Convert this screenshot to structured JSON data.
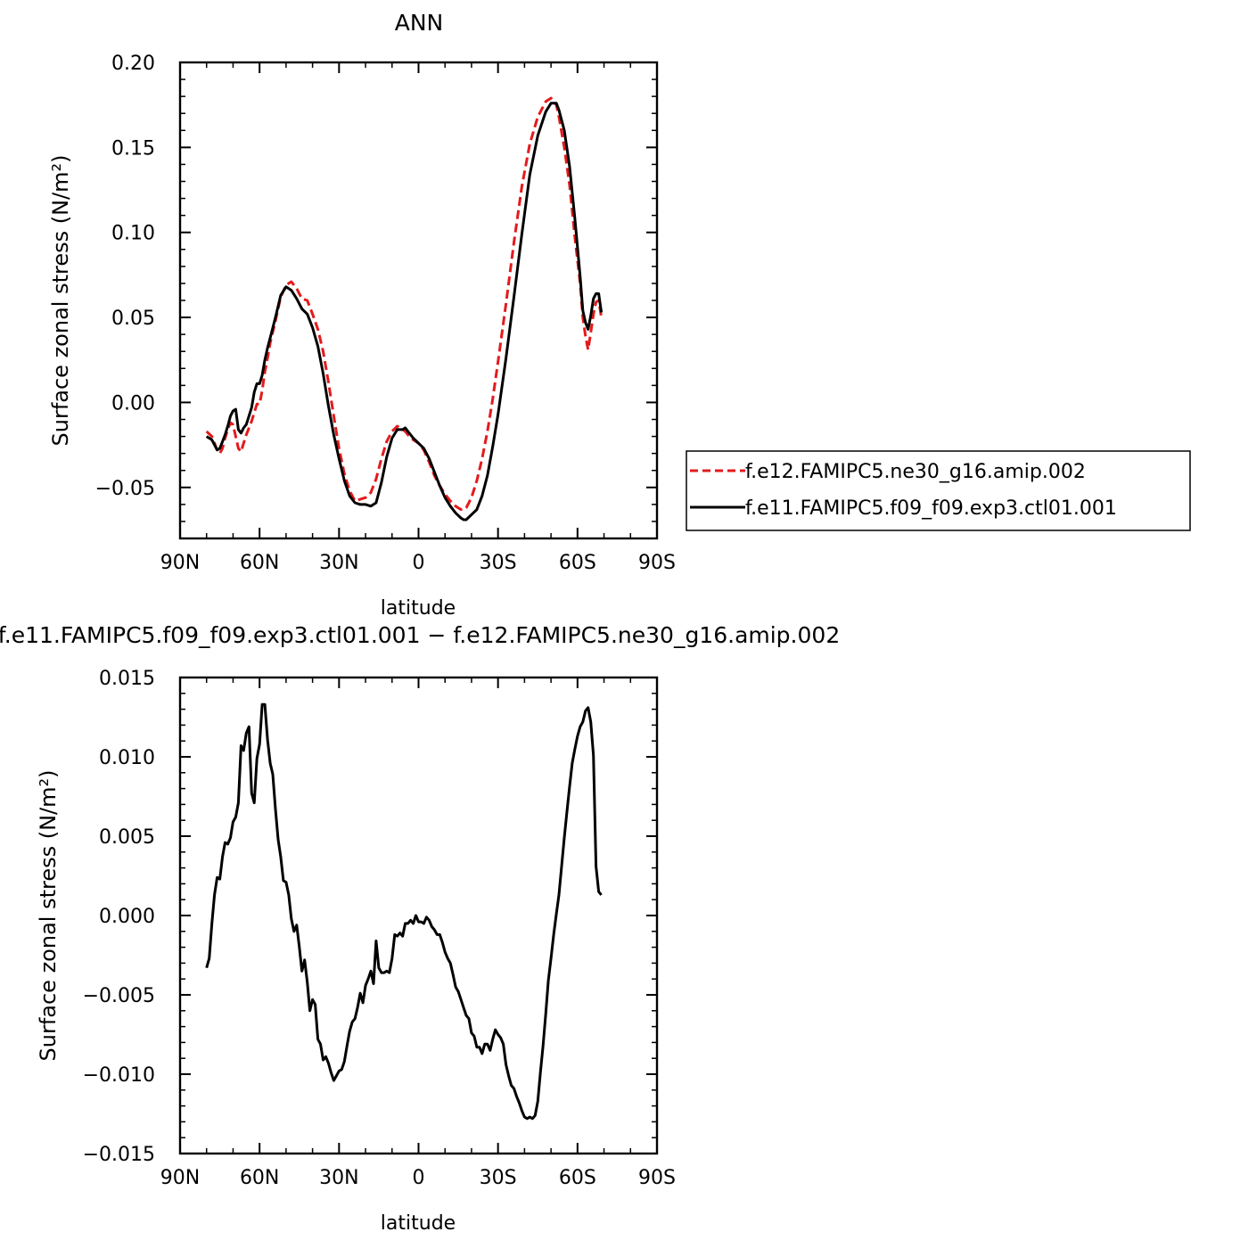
{
  "chart_data": [
    {
      "type": "line",
      "title": "ANN",
      "xlabel": "latitude",
      "ylabel": "Surface zonal stress (N/m²)",
      "xlim": [
        90,
        -90
      ],
      "ylim": [
        -0.08,
        0.2
      ],
      "x_tick_values": [
        90,
        60,
        30,
        0,
        -30,
        -60,
        -90
      ],
      "x_tick_labels": [
        "90N",
        "60N",
        "30N",
        "0",
        "30S",
        "60S",
        "90S"
      ],
      "y_tick_values": [
        0.2,
        0.15,
        0.1,
        0.05,
        0.0,
        -0.05
      ],
      "y_tick_labels": [
        "0.20",
        "0.15",
        "0.10",
        "0.05",
        "0.00",
        "−0.05"
      ],
      "legend_position": "right",
      "series": [
        {
          "name": "f.e12.FAMIPC5.ne30_g16.amip.002",
          "color": "#e31a1c",
          "dash": "dashed",
          "x": [
            80,
            78,
            76,
            75,
            74,
            73,
            72,
            71,
            70,
            69,
            68,
            67,
            66,
            65,
            64,
            63,
            62,
            61,
            60,
            59,
            58,
            57,
            56,
            54,
            52,
            50,
            48,
            46,
            44,
            42,
            40,
            38,
            36,
            34,
            32,
            30,
            28,
            26,
            24,
            22,
            20,
            18,
            16,
            14,
            12,
            10,
            8,
            6,
            5,
            4,
            2,
            0,
            -2,
            -4,
            -6,
            -8,
            -10,
            -12,
            -14,
            -16,
            -17,
            -18,
            -20,
            -22,
            -24,
            -26,
            -28,
            -30,
            -33,
            -36,
            -39,
            -42,
            -45,
            -48,
            -50,
            -52,
            -53,
            -55,
            -57,
            -59,
            -61,
            -62,
            -63,
            -64,
            -65,
            -66,
            -67,
            -68,
            -69
          ],
          "y": [
            -0.017,
            -0.02,
            -0.028,
            -0.03,
            -0.027,
            -0.021,
            -0.016,
            -0.012,
            -0.013,
            -0.02,
            -0.027,
            -0.029,
            -0.024,
            -0.019,
            -0.015,
            -0.011,
            -0.006,
            -0.001,
            -0.001,
            0.007,
            0.018,
            0.026,
            0.035,
            0.048,
            0.062,
            0.069,
            0.071,
            0.067,
            0.061,
            0.06,
            0.052,
            0.043,
            0.03,
            0.012,
            -0.008,
            -0.027,
            -0.042,
            -0.052,
            -0.058,
            -0.057,
            -0.056,
            -0.053,
            -0.045,
            -0.033,
            -0.023,
            -0.017,
            -0.014,
            -0.016,
            -0.017,
            -0.019,
            -0.022,
            -0.024,
            -0.028,
            -0.035,
            -0.043,
            -0.049,
            -0.054,
            -0.058,
            -0.061,
            -0.063,
            -0.063,
            -0.062,
            -0.056,
            -0.046,
            -0.033,
            -0.017,
            0.002,
            0.024,
            0.058,
            0.094,
            0.127,
            0.152,
            0.168,
            0.177,
            0.179,
            0.175,
            0.168,
            0.15,
            0.128,
            0.097,
            0.07,
            0.05,
            0.039,
            0.031,
            0.041,
            0.052,
            0.059,
            0.06,
            0.05
          ]
        },
        {
          "name": "f.e11.FAMIPC5.f09_f09.exp3.ctl01.001",
          "color": "#000000",
          "dash": "solid",
          "x": [
            80,
            78,
            76,
            75,
            74,
            73,
            72,
            71,
            70,
            69,
            68,
            67,
            66,
            65,
            64,
            63,
            62,
            61,
            60,
            59,
            58,
            57,
            56,
            54,
            52,
            50,
            48,
            46,
            44,
            42,
            40,
            38,
            36,
            34,
            32,
            30,
            28,
            26,
            24,
            22,
            20,
            18,
            16,
            14,
            12,
            10,
            8,
            6,
            5,
            4,
            2,
            0,
            -2,
            -4,
            -6,
            -8,
            -10,
            -12,
            -14,
            -16,
            -17,
            -18,
            -20,
            -22,
            -24,
            -26,
            -28,
            -30,
            -33,
            -36,
            -39,
            -42,
            -45,
            -48,
            -50,
            -52,
            -53,
            -55,
            -57,
            -59,
            -61,
            -62,
            -63,
            -64,
            -65,
            -66,
            -67,
            -68,
            -69
          ],
          "y": [
            -0.02,
            -0.022,
            -0.028,
            -0.027,
            -0.023,
            -0.019,
            -0.014,
            -0.008,
            -0.005,
            -0.004,
            -0.016,
            -0.018,
            -0.015,
            -0.013,
            -0.008,
            -0.003,
            0.006,
            0.011,
            0.011,
            0.016,
            0.025,
            0.032,
            0.038,
            0.05,
            0.063,
            0.068,
            0.066,
            0.061,
            0.055,
            0.052,
            0.044,
            0.033,
            0.017,
            -0.002,
            -0.019,
            -0.033,
            -0.046,
            -0.055,
            -0.059,
            -0.06,
            -0.06,
            -0.061,
            -0.059,
            -0.047,
            -0.032,
            -0.021,
            -0.016,
            -0.016,
            -0.015,
            -0.017,
            -0.021,
            -0.024,
            -0.027,
            -0.033,
            -0.041,
            -0.049,
            -0.056,
            -0.061,
            -0.065,
            -0.068,
            -0.069,
            -0.069,
            -0.066,
            -0.063,
            -0.055,
            -0.043,
            -0.026,
            -0.007,
            0.026,
            0.062,
            0.099,
            0.134,
            0.157,
            0.171,
            0.176,
            0.176,
            0.172,
            0.16,
            0.139,
            0.108,
            0.074,
            0.054,
            0.047,
            0.043,
            0.051,
            0.061,
            0.064,
            0.064,
            0.053
          ]
        }
      ]
    },
    {
      "type": "line",
      "title": "f.e11.FAMIPC5.f09_f09.exp3.ctl01.001 − f.e12.FAMIPC5.ne30_g16.amip.002",
      "xlabel": "latitude",
      "ylabel": "Surface zonal stress (N/m²)",
      "xlim": [
        90,
        -90
      ],
      "ylim": [
        -0.015,
        0.015
      ],
      "x_tick_values": [
        90,
        60,
        30,
        0,
        -30,
        -60,
        -90
      ],
      "x_tick_labels": [
        "90N",
        "60N",
        "30N",
        "0",
        "30S",
        "60S",
        "90S"
      ],
      "y_tick_values": [
        0.015,
        0.01,
        0.005,
        0.0,
        -0.005,
        -0.01,
        -0.015
      ],
      "y_tick_labels": [
        "0.015",
        "0.010",
        "0.005",
        "0.000",
        "−0.005",
        "−0.010",
        "−0.015"
      ],
      "series": [
        {
          "color": "#000000",
          "dash": "solid",
          "x": [
            80,
            79,
            78,
            77,
            76,
            75,
            74,
            73,
            72,
            71,
            70,
            69,
            68,
            67,
            66,
            65,
            64,
            63,
            62,
            61,
            60,
            59,
            58,
            57,
            56,
            55,
            54,
            53,
            52,
            51,
            50,
            49,
            48,
            47,
            46,
            45,
            44,
            43,
            42,
            41,
            40,
            39,
            38,
            37,
            36,
            35,
            34,
            33,
            32,
            31,
            30,
            29,
            28,
            27,
            26,
            25,
            24,
            23,
            22,
            21,
            20,
            19,
            18,
            17,
            16,
            15,
            14,
            13,
            12,
            11,
            10,
            9,
            8,
            7,
            6,
            5,
            4,
            3,
            2,
            1,
            0,
            -1,
            -2,
            -3,
            -4,
            -5,
            -6,
            -7,
            -8,
            -9,
            -10,
            -11,
            -12,
            -13,
            -14,
            -15,
            -16,
            -17,
            -18,
            -19,
            -20,
            -21,
            -22,
            -23,
            -24,
            -25,
            -26,
            -27,
            -28,
            -29,
            -30,
            -31,
            -32,
            -33,
            -34,
            -35,
            -36,
            -37,
            -38,
            -39,
            -40,
            -41,
            -42,
            -43,
            -44,
            -45,
            -46,
            -47,
            -48,
            -49,
            -50,
            -51,
            -52,
            -53,
            -54,
            -55,
            -56,
            -57,
            -58,
            -59,
            -60,
            -61,
            -62,
            -63,
            -64,
            -65,
            -66,
            -67,
            -68,
            -69
          ],
          "y": [
            -0.0033,
            -0.0027,
            -0.0005,
            0.0013,
            0.0024,
            0.0023,
            0.0037,
            0.0046,
            0.0045,
            0.0049,
            0.0059,
            0.0062,
            0.0071,
            0.0107,
            0.0104,
            0.0115,
            0.0119,
            0.0077,
            0.0071,
            0.0099,
            0.0108,
            0.0133,
            0.0133,
            0.0111,
            0.0096,
            0.0089,
            0.0067,
            0.0048,
            0.0037,
            0.0022,
            0.0021,
            0.0013,
            -0.0002,
            -0.001,
            -0.0006,
            -0.002,
            -0.0035,
            -0.0028,
            -0.0042,
            -0.006,
            -0.0053,
            -0.0056,
            -0.0078,
            -0.0081,
            -0.0091,
            -0.0089,
            -0.0093,
            -0.0099,
            -0.0104,
            -0.0101,
            -0.0098,
            -0.0097,
            -0.0092,
            -0.0082,
            -0.0073,
            -0.0067,
            -0.0065,
            -0.0058,
            -0.0049,
            -0.0055,
            -0.0044,
            -0.004,
            -0.0035,
            -0.0043,
            -0.0016,
            -0.0033,
            -0.0036,
            -0.0036,
            -0.0035,
            -0.0036,
            -0.0027,
            -0.0012,
            -0.0013,
            -0.0011,
            -0.0013,
            -0.0005,
            -0.0005,
            -0.0003,
            -0.0005,
            0.0,
            -0.0004,
            -0.0004,
            -0.0005,
            -0.0001,
            -0.0003,
            -0.0007,
            -0.0009,
            -0.0012,
            -0.0012,
            -0.0017,
            -0.0023,
            -0.0027,
            -0.003,
            -0.0037,
            -0.0045,
            -0.0048,
            -0.0053,
            -0.0058,
            -0.0063,
            -0.0065,
            -0.0074,
            -0.0076,
            -0.0083,
            -0.0083,
            -0.0087,
            -0.0081,
            -0.0081,
            -0.0085,
            -0.0078,
            -0.0072,
            -0.0075,
            -0.0077,
            -0.0081,
            -0.0094,
            -0.0101,
            -0.0107,
            -0.0109,
            -0.0114,
            -0.0118,
            -0.0123,
            -0.0127,
            -0.0128,
            -0.0127,
            -0.0128,
            -0.0126,
            -0.0117,
            -0.0099,
            -0.0082,
            -0.0062,
            -0.0041,
            -0.0027,
            -0.0012,
            0.0001,
            0.0013,
            0.0031,
            0.0049,
            0.0065,
            0.0081,
            0.0096,
            0.0105,
            0.0113,
            0.0119,
            0.0122,
            0.0129,
            0.0131,
            0.0122,
            0.0101,
            0.0031,
            0.0015,
            0.0013
          ]
        }
      ]
    }
  ]
}
